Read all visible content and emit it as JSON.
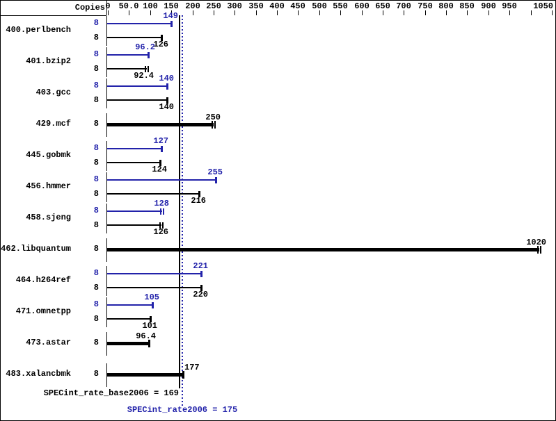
{
  "chart_data": {
    "type": "bar",
    "orientation": "horizontal",
    "title": "",
    "copies_header": "Copies",
    "x_axis": {
      "min": 0,
      "max": 1050,
      "tick_step": 50,
      "ticks": [
        {
          "value": 0,
          "label": "0"
        },
        {
          "value": 50,
          "label": "50.0"
        },
        {
          "value": 100,
          "label": "100"
        },
        {
          "value": 150,
          "label": "150"
        },
        {
          "value": 200,
          "label": "200"
        },
        {
          "value": 250,
          "label": "250"
        },
        {
          "value": 300,
          "label": "300"
        },
        {
          "value": 350,
          "label": "350"
        },
        {
          "value": 400,
          "label": "400"
        },
        {
          "value": 450,
          "label": "450"
        },
        {
          "value": 500,
          "label": "500"
        },
        {
          "value": 550,
          "label": "550"
        },
        {
          "value": 600,
          "label": "600"
        },
        {
          "value": 650,
          "label": "650"
        },
        {
          "value": 700,
          "label": "700"
        },
        {
          "value": 750,
          "label": "750"
        },
        {
          "value": 800,
          "label": "800"
        },
        {
          "value": 850,
          "label": "850"
        },
        {
          "value": 900,
          "label": "900"
        },
        {
          "value": 950,
          "label": "950"
        },
        {
          "value": 1000,
          "label": ""
        },
        {
          "value": 1050,
          "label": "1050"
        }
      ]
    },
    "benchmarks": [
      {
        "name": "400.perlbench",
        "copies": "8",
        "bars": [
          {
            "role": "peak",
            "value": 149,
            "label": "149",
            "caps": 1
          },
          {
            "role": "base",
            "value": 126,
            "label": "126",
            "caps": 1
          }
        ]
      },
      {
        "name": "401.bzip2",
        "copies": "8",
        "bars": [
          {
            "role": "peak",
            "value": 96.2,
            "label": "96.2",
            "caps": 1
          },
          {
            "role": "base",
            "value": 92.4,
            "label": "92.4",
            "caps": 2
          }
        ]
      },
      {
        "name": "403.gcc",
        "copies": "8",
        "bars": [
          {
            "role": "peak",
            "value": 140,
            "label": "140",
            "caps": 1
          },
          {
            "role": "base",
            "value": 140,
            "label": "140",
            "caps": 1
          }
        ]
      },
      {
        "name": "429.mcf",
        "copies": "8",
        "bars": [
          {
            "role": "single",
            "value": 250,
            "label": "250",
            "caps": 2
          }
        ]
      },
      {
        "name": "445.gobmk",
        "copies": "8",
        "bars": [
          {
            "role": "peak",
            "value": 127,
            "label": "127",
            "caps": 1
          },
          {
            "role": "base",
            "value": 124,
            "label": "124",
            "caps": 1
          }
        ]
      },
      {
        "name": "456.hmmer",
        "copies": "8",
        "bars": [
          {
            "role": "peak",
            "value": 255,
            "label": "255",
            "caps": 1
          },
          {
            "role": "base",
            "value": 216,
            "label": "216",
            "caps": 1
          }
        ]
      },
      {
        "name": "458.sjeng",
        "copies": "8",
        "bars": [
          {
            "role": "peak",
            "value": 128,
            "label": "128",
            "caps": 2
          },
          {
            "role": "base",
            "value": 126,
            "label": "126",
            "caps": 2
          }
        ]
      },
      {
        "name": "462.libquantum",
        "copies": "8",
        "bars": [
          {
            "role": "single",
            "value": 1020,
            "label": "1020",
            "caps": 2
          }
        ]
      },
      {
        "name": "464.h264ref",
        "copies": "8",
        "bars": [
          {
            "role": "peak",
            "value": 221,
            "label": "221",
            "caps": 1
          },
          {
            "role": "base",
            "value": 220,
            "label": "220",
            "caps": 1
          }
        ]
      },
      {
        "name": "471.omnetpp",
        "copies": "8",
        "bars": [
          {
            "role": "peak",
            "value": 105,
            "label": "105",
            "caps": 1
          },
          {
            "role": "base",
            "value": 101,
            "label": "101",
            "caps": 1
          }
        ]
      },
      {
        "name": "473.astar",
        "copies": "8",
        "bars": [
          {
            "role": "single",
            "value": 96.4,
            "label": "96.4",
            "caps": 1
          }
        ]
      },
      {
        "name": "483.xalancbmk",
        "copies": "8",
        "bars": [
          {
            "role": "single",
            "value": 177,
            "label": "177",
            "caps": 1,
            "label_side": "right"
          }
        ]
      }
    ],
    "reference_lines": [
      {
        "name": "base",
        "value": 169,
        "label": "SPECint_rate_base2006 = 169",
        "color": "#000000",
        "style": "solid"
      },
      {
        "name": "peak",
        "value": 175,
        "label": "SPECint_rate2006 = 175",
        "color": "#2222aa",
        "style": "dotted"
      }
    ],
    "colors": {
      "peak": "#2222aa",
      "base": "#000000",
      "background": "#ffffff"
    },
    "layout_hints": {
      "legend": "none",
      "grid": "off",
      "value_axis_position": "top"
    }
  }
}
